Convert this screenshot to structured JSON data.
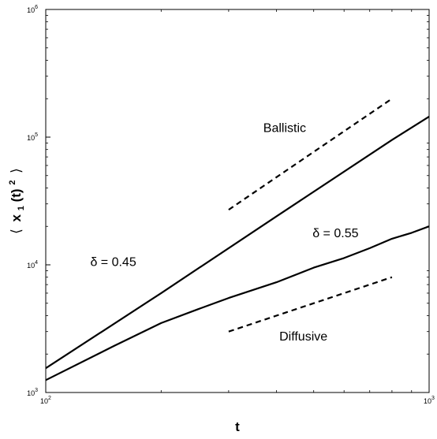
{
  "chart_data": {
    "type": "line",
    "xscale": "log",
    "yscale": "log",
    "xlim": [
      100,
      1000
    ],
    "ylim": [
      1000,
      1000000
    ],
    "xlabel": "t",
    "ylabel": "⟨ x1(t)2 ⟩",
    "ylabel_parts": {
      "left": "⟨",
      "base": "x",
      "sub": "1",
      "mid": "(t)",
      "sup": "2",
      "right": "⟩"
    },
    "x_ticks": [
      {
        "value": 100,
        "base": "10",
        "exp": "2"
      },
      {
        "value": 1000,
        "base": "10",
        "exp": "3"
      }
    ],
    "y_ticks": [
      {
        "value": 1000,
        "base": "10",
        "exp": "3"
      },
      {
        "value": 10000,
        "base": "10",
        "exp": "4"
      },
      {
        "value": 100000,
        "base": "10",
        "exp": "5"
      },
      {
        "value": 1000000,
        "base": "10",
        "exp": "6"
      }
    ],
    "grid": false,
    "series": [
      {
        "name": "δ = 0.45",
        "style": "solid",
        "x": [
          100,
          200,
          400,
          800,
          1000
        ],
        "y": [
          1550,
          6000,
          24000,
          95000,
          145000
        ]
      },
      {
        "name": "δ = 0.55",
        "style": "solid",
        "x": [
          100,
          150,
          200,
          250,
          300,
          400,
          500,
          600,
          700,
          800,
          900,
          1000
        ],
        "y": [
          1250,
          2300,
          3500,
          4500,
          5500,
          7300,
          9500,
          11300,
          13500,
          16000,
          17800,
          20000
        ]
      },
      {
        "name": "Ballistic",
        "style": "dashed",
        "x": [
          300,
          800
        ],
        "y": [
          27000,
          200000
        ]
      },
      {
        "name": "Diffusive",
        "style": "dashed",
        "x": [
          300,
          800
        ],
        "y": [
          3000,
          8000
        ]
      }
    ],
    "annotations": [
      {
        "text": "Ballistic",
        "x": 420,
        "y": 110000
      },
      {
        "text": "δ = 0.55",
        "x": 570,
        "y": 16500
      },
      {
        "text": "δ = 0.45",
        "x": 150,
        "y": 9800
      },
      {
        "text": "Diffusive",
        "x": 470,
        "y": 2550
      }
    ]
  }
}
